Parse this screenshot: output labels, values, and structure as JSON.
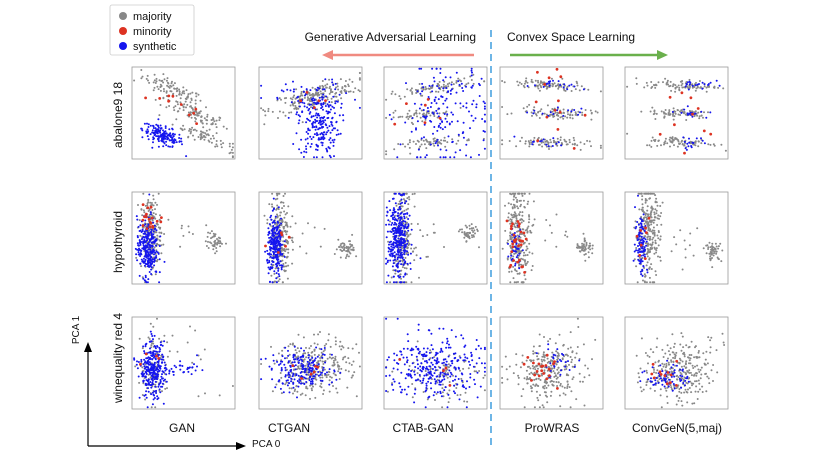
{
  "chart_data": {
    "type": "scatter",
    "title": "",
    "legend": {
      "placement": "top-left",
      "entries": [
        {
          "name": "majority",
          "color": "#888888"
        },
        {
          "name": "minority",
          "color": "#dd3322"
        },
        {
          "name": "synthetic",
          "color": "#1515ee"
        }
      ]
    },
    "sections": {
      "left": {
        "label": "Generative Adversarial Learning",
        "arrow_direction": "left",
        "arrow_color": "#f08a80"
      },
      "right": {
        "label": "Convex Space Learning",
        "arrow_direction": "right",
        "arrow_color": "#6ab04c"
      },
      "divider_color": "#4aa3df"
    },
    "rows": [
      "abalone9 18",
      "hypothyroid",
      "winequality red 4"
    ],
    "columns": [
      "GAN",
      "CTGAN",
      "CTAB-GAN",
      "ProWRAS",
      "ConvGeN(5,maj)"
    ],
    "xlabel": "PCA 0",
    "ylabel": "PCA 1",
    "axis_range": {
      "x": [
        0,
        1
      ],
      "y": [
        0,
        1
      ]
    },
    "grid": false,
    "panels": [
      {
        "row": "abalone9 18",
        "column": "GAN",
        "clusters": [
          {
            "class": "majority",
            "n": 90,
            "cx": 0.4,
            "cy": 0.75,
            "sx": 0.15,
            "sy": 0.05,
            "slope": -0.5
          },
          {
            "class": "majority",
            "n": 90,
            "cx": 0.6,
            "cy": 0.5,
            "sx": 0.17,
            "sy": 0.05,
            "slope": -0.5
          },
          {
            "class": "majority",
            "n": 70,
            "cx": 0.7,
            "cy": 0.25,
            "sx": 0.15,
            "sy": 0.04,
            "slope": -0.5
          },
          {
            "class": "minority",
            "n": 10,
            "cx": 0.45,
            "cy": 0.55,
            "sx": 0.12,
            "sy": 0.05,
            "slope": -0.5
          },
          {
            "class": "synthetic",
            "n": 160,
            "cx": 0.3,
            "cy": 0.25,
            "sx": 0.1,
            "sy": 0.05,
            "slope": -0.4
          }
        ]
      },
      {
        "row": "abalone9 18",
        "column": "CTGAN",
        "clusters": [
          {
            "class": "majority",
            "n": 200,
            "cx": 0.55,
            "cy": 0.68,
            "sx": 0.22,
            "sy": 0.06,
            "slope": 0.3
          },
          {
            "class": "synthetic",
            "n": 230,
            "cx": 0.58,
            "cy": 0.4,
            "sx": 0.1,
            "sy": 0.2,
            "slope": 0.0
          },
          {
            "class": "synthetic",
            "n": 40,
            "cx": 0.5,
            "cy": 0.65,
            "sx": 0.25,
            "sy": 0.1,
            "slope": 0.0
          },
          {
            "class": "minority",
            "n": 5,
            "cx": 0.55,
            "cy": 0.6,
            "sx": 0.1,
            "sy": 0.08,
            "slope": 0.0
          }
        ]
      },
      {
        "row": "abalone9 18",
        "column": "CTAB-GAN",
        "clusters": [
          {
            "class": "majority",
            "n": 80,
            "cx": 0.5,
            "cy": 0.78,
            "sx": 0.22,
            "sy": 0.03,
            "slope": 0.2
          },
          {
            "class": "majority",
            "n": 60,
            "cx": 0.35,
            "cy": 0.48,
            "sx": 0.15,
            "sy": 0.03,
            "slope": 0.1
          },
          {
            "class": "majority",
            "n": 60,
            "cx": 0.5,
            "cy": 0.18,
            "sx": 0.18,
            "sy": 0.03,
            "slope": 0.15
          },
          {
            "class": "synthetic",
            "n": 180,
            "cx": 0.6,
            "cy": 0.5,
            "sx": 0.22,
            "sy": 0.28,
            "slope": 0.0
          },
          {
            "class": "minority",
            "n": 6,
            "cx": 0.5,
            "cy": 0.5,
            "sx": 0.15,
            "sy": 0.2,
            "slope": 0.0
          }
        ]
      },
      {
        "row": "abalone9 18",
        "column": "ProWRAS",
        "clusters": [
          {
            "class": "majority",
            "n": 90,
            "cx": 0.45,
            "cy": 0.8,
            "sx": 0.18,
            "sy": 0.03,
            "slope": -0.1
          },
          {
            "class": "majority",
            "n": 80,
            "cx": 0.55,
            "cy": 0.5,
            "sx": 0.18,
            "sy": 0.03,
            "slope": -0.05
          },
          {
            "class": "majority",
            "n": 80,
            "cx": 0.45,
            "cy": 0.18,
            "sx": 0.2,
            "sy": 0.03,
            "slope": -0.05
          },
          {
            "class": "minority",
            "n": 14,
            "cx": 0.45,
            "cy": 0.5,
            "sx": 0.18,
            "sy": 0.28,
            "slope": 0.0
          },
          {
            "class": "synthetic",
            "n": 20,
            "cx": 0.5,
            "cy": 0.8,
            "sx": 0.12,
            "sy": 0.03,
            "slope": -0.1
          },
          {
            "class": "synthetic",
            "n": 16,
            "cx": 0.55,
            "cy": 0.5,
            "sx": 0.12,
            "sy": 0.03,
            "slope": -0.05
          },
          {
            "class": "synthetic",
            "n": 14,
            "cx": 0.45,
            "cy": 0.18,
            "sx": 0.12,
            "sy": 0.03,
            "slope": -0.05
          }
        ]
      },
      {
        "row": "abalone9 18",
        "column": "ConvGeN(5,maj)",
        "clusters": [
          {
            "class": "majority",
            "n": 90,
            "cx": 0.55,
            "cy": 0.8,
            "sx": 0.18,
            "sy": 0.03,
            "slope": -0.05
          },
          {
            "class": "majority",
            "n": 80,
            "cx": 0.55,
            "cy": 0.5,
            "sx": 0.15,
            "sy": 0.03,
            "slope": 0.0
          },
          {
            "class": "majority",
            "n": 80,
            "cx": 0.55,
            "cy": 0.18,
            "sx": 0.18,
            "sy": 0.03,
            "slope": -0.05
          },
          {
            "class": "synthetic",
            "n": 20,
            "cx": 0.7,
            "cy": 0.82,
            "sx": 0.08,
            "sy": 0.03,
            "slope": 0.0
          },
          {
            "class": "synthetic",
            "n": 16,
            "cx": 0.65,
            "cy": 0.5,
            "sx": 0.08,
            "sy": 0.03,
            "slope": 0.0
          },
          {
            "class": "synthetic",
            "n": 16,
            "cx": 0.65,
            "cy": 0.18,
            "sx": 0.08,
            "sy": 0.03,
            "slope": 0.0
          },
          {
            "class": "minority",
            "n": 10,
            "cx": 0.55,
            "cy": 0.5,
            "sx": 0.18,
            "sy": 0.28,
            "slope": 0.0
          }
        ]
      },
      {
        "row": "hypothyroid",
        "column": "GAN",
        "clusters": [
          {
            "class": "majority",
            "n": 200,
            "cx": 0.18,
            "cy": 0.55,
            "sx": 0.05,
            "sy": 0.2,
            "slope": 0.0
          },
          {
            "class": "majority",
            "n": 50,
            "cx": 0.8,
            "cy": 0.46,
            "sx": 0.04,
            "sy": 0.05,
            "slope": 0.0
          },
          {
            "class": "majority",
            "n": 10,
            "cx": 0.45,
            "cy": 0.55,
            "sx": 0.12,
            "sy": 0.15,
            "slope": 0.0
          },
          {
            "class": "minority",
            "n": 20,
            "cx": 0.18,
            "cy": 0.72,
            "sx": 0.06,
            "sy": 0.08,
            "slope": 0.0
          },
          {
            "class": "synthetic",
            "n": 280,
            "cx": 0.15,
            "cy": 0.4,
            "sx": 0.05,
            "sy": 0.16,
            "slope": 0.0
          }
        ]
      },
      {
        "row": "hypothyroid",
        "column": "CTGAN",
        "clusters": [
          {
            "class": "majority",
            "n": 220,
            "cx": 0.2,
            "cy": 0.52,
            "sx": 0.05,
            "sy": 0.25,
            "slope": 0.0
          },
          {
            "class": "majority",
            "n": 50,
            "cx": 0.85,
            "cy": 0.37,
            "sx": 0.04,
            "sy": 0.05,
            "slope": 0.0
          },
          {
            "class": "majority",
            "n": 10,
            "cx": 0.55,
            "cy": 0.5,
            "sx": 0.15,
            "sy": 0.15,
            "slope": 0.0
          },
          {
            "class": "synthetic",
            "n": 240,
            "cx": 0.16,
            "cy": 0.4,
            "sx": 0.04,
            "sy": 0.16,
            "slope": 0.0
          },
          {
            "class": "minority",
            "n": 6,
            "cx": 0.2,
            "cy": 0.55,
            "sx": 0.05,
            "sy": 0.12,
            "slope": 0.0
          }
        ]
      },
      {
        "row": "hypothyroid",
        "column": "CTAB-GAN",
        "clusters": [
          {
            "class": "majority",
            "n": 200,
            "cx": 0.18,
            "cy": 0.5,
            "sx": 0.05,
            "sy": 0.25,
            "slope": 0.0
          },
          {
            "class": "majority",
            "n": 50,
            "cx": 0.82,
            "cy": 0.55,
            "sx": 0.04,
            "sy": 0.05,
            "slope": 0.0
          },
          {
            "class": "majority",
            "n": 10,
            "cx": 0.45,
            "cy": 0.5,
            "sx": 0.12,
            "sy": 0.12,
            "slope": 0.0
          },
          {
            "class": "synthetic",
            "n": 340,
            "cx": 0.14,
            "cy": 0.48,
            "sx": 0.05,
            "sy": 0.22,
            "slope": 0.0
          }
        ]
      },
      {
        "row": "hypothyroid",
        "column": "ProWRAS",
        "clusters": [
          {
            "class": "majority",
            "n": 260,
            "cx": 0.18,
            "cy": 0.55,
            "sx": 0.06,
            "sy": 0.25,
            "slope": 0.0
          },
          {
            "class": "majority",
            "n": 50,
            "cx": 0.82,
            "cy": 0.4,
            "sx": 0.04,
            "sy": 0.05,
            "slope": 0.0
          },
          {
            "class": "majority",
            "n": 14,
            "cx": 0.5,
            "cy": 0.55,
            "sx": 0.15,
            "sy": 0.15,
            "slope": 0.0
          },
          {
            "class": "minority",
            "n": 30,
            "cx": 0.16,
            "cy": 0.45,
            "sx": 0.05,
            "sy": 0.15,
            "slope": 0.0
          },
          {
            "class": "synthetic",
            "n": 40,
            "cx": 0.15,
            "cy": 0.4,
            "sx": 0.03,
            "sy": 0.12,
            "slope": 0.0
          }
        ]
      },
      {
        "row": "hypothyroid",
        "column": "ConvGeN(5,maj)",
        "clusters": [
          {
            "class": "majority",
            "n": 260,
            "cx": 0.22,
            "cy": 0.55,
            "sx": 0.06,
            "sy": 0.25,
            "slope": 0.0
          },
          {
            "class": "majority",
            "n": 50,
            "cx": 0.86,
            "cy": 0.35,
            "sx": 0.04,
            "sy": 0.05,
            "slope": 0.0
          },
          {
            "class": "majority",
            "n": 14,
            "cx": 0.5,
            "cy": 0.55,
            "sx": 0.15,
            "sy": 0.15,
            "slope": 0.0
          },
          {
            "class": "synthetic",
            "n": 100,
            "cx": 0.16,
            "cy": 0.45,
            "sx": 0.03,
            "sy": 0.18,
            "slope": 0.0
          },
          {
            "class": "minority",
            "n": 8,
            "cx": 0.18,
            "cy": 0.5,
            "sx": 0.04,
            "sy": 0.12,
            "slope": 0.0
          }
        ]
      },
      {
        "row": "winequality red 4",
        "column": "GAN",
        "clusters": [
          {
            "class": "majority",
            "n": 100,
            "cx": 0.22,
            "cy": 0.45,
            "sx": 0.07,
            "sy": 0.2,
            "slope": 0.0
          },
          {
            "class": "majority",
            "n": 15,
            "cx": 0.55,
            "cy": 0.5,
            "sx": 0.2,
            "sy": 0.25,
            "slope": 0.0
          },
          {
            "class": "synthetic",
            "n": 280,
            "cx": 0.2,
            "cy": 0.42,
            "sx": 0.06,
            "sy": 0.15,
            "slope": 0.0
          },
          {
            "class": "synthetic",
            "n": 40,
            "cx": 0.45,
            "cy": 0.42,
            "sx": 0.15,
            "sy": 0.05,
            "slope": 0.0
          },
          {
            "class": "minority",
            "n": 4,
            "cx": 0.22,
            "cy": 0.45,
            "sx": 0.06,
            "sy": 0.12,
            "slope": 0.0
          }
        ]
      },
      {
        "row": "winequality red 4",
        "column": "CTGAN",
        "clusters": [
          {
            "class": "majority",
            "n": 260,
            "cx": 0.52,
            "cy": 0.45,
            "sx": 0.18,
            "sy": 0.15,
            "slope": 0.0
          },
          {
            "class": "majority",
            "n": 20,
            "cx": 0.75,
            "cy": 0.65,
            "sx": 0.12,
            "sy": 0.12,
            "slope": 0.0
          },
          {
            "class": "synthetic",
            "n": 200,
            "cx": 0.42,
            "cy": 0.42,
            "sx": 0.15,
            "sy": 0.1,
            "slope": 0.0
          },
          {
            "class": "minority",
            "n": 6,
            "cx": 0.45,
            "cy": 0.45,
            "sx": 0.12,
            "sy": 0.1,
            "slope": 0.0
          }
        ]
      },
      {
        "row": "winequality red 4",
        "column": "CTAB-GAN",
        "clusters": [
          {
            "class": "synthetic",
            "n": 300,
            "cx": 0.48,
            "cy": 0.45,
            "sx": 0.22,
            "sy": 0.18,
            "slope": 0.0
          },
          {
            "class": "majority",
            "n": 100,
            "cx": 0.55,
            "cy": 0.38,
            "sx": 0.2,
            "sy": 0.15,
            "slope": 0.0
          },
          {
            "class": "minority",
            "n": 4,
            "cx": 0.5,
            "cy": 0.45,
            "sx": 0.15,
            "sy": 0.15,
            "slope": 0.0
          }
        ]
      },
      {
        "row": "winequality red 4",
        "column": "ProWRAS",
        "clusters": [
          {
            "class": "majority",
            "n": 260,
            "cx": 0.45,
            "cy": 0.4,
            "sx": 0.16,
            "sy": 0.16,
            "slope": 0.0
          },
          {
            "class": "majority",
            "n": 20,
            "cx": 0.7,
            "cy": 0.6,
            "sx": 0.15,
            "sy": 0.15,
            "slope": 0.0
          },
          {
            "class": "minority",
            "n": 20,
            "cx": 0.4,
            "cy": 0.45,
            "sx": 0.1,
            "sy": 0.1,
            "slope": 0.0
          },
          {
            "class": "synthetic",
            "n": 30,
            "cx": 0.55,
            "cy": 0.5,
            "sx": 0.08,
            "sy": 0.08,
            "slope": 0.0
          }
        ]
      },
      {
        "row": "winequality red 4",
        "column": "ConvGeN(5,maj)",
        "clusters": [
          {
            "class": "majority",
            "n": 260,
            "cx": 0.5,
            "cy": 0.4,
            "sx": 0.16,
            "sy": 0.16,
            "slope": 0.0
          },
          {
            "class": "majority",
            "n": 20,
            "cx": 0.75,
            "cy": 0.6,
            "sx": 0.15,
            "sy": 0.15,
            "slope": 0.0
          },
          {
            "class": "synthetic",
            "n": 70,
            "cx": 0.42,
            "cy": 0.35,
            "sx": 0.1,
            "sy": 0.07,
            "slope": 0.0
          },
          {
            "class": "minority",
            "n": 12,
            "cx": 0.42,
            "cy": 0.35,
            "sx": 0.1,
            "sy": 0.08,
            "slope": 0.0
          }
        ]
      }
    ]
  }
}
